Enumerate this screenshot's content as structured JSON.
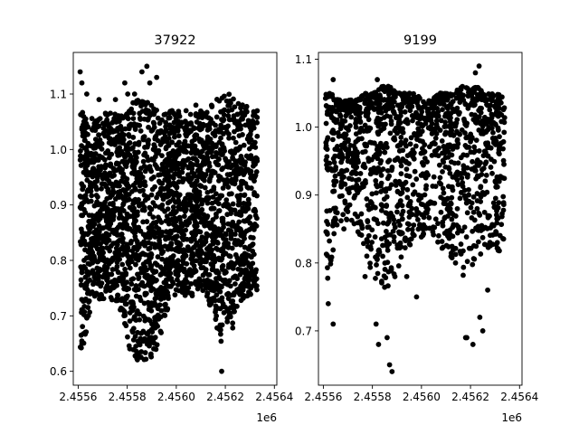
{
  "chart_data": [
    {
      "type": "scatter",
      "title": "37922",
      "xlabel": "",
      "ylabel": "",
      "x_offset_label": "1e6",
      "xlim": [
        2455600.0,
        2456430.0
      ],
      "ylim": [
        0.575,
        1.175
      ],
      "x_ticks": [
        2455620,
        2455820,
        2456020,
        2456220,
        2456420
      ],
      "x_tick_labels": [
        "2.4556",
        "2.4558",
        "2.4560",
        "2.4562",
        "2.4564"
      ],
      "y_ticks": [
        0.6,
        0.7,
        0.8,
        0.9,
        1.0,
        1.1
      ],
      "y_tick_labels": [
        "0.6",
        "0.7",
        "0.8",
        "0.9",
        "1.0",
        "1.1"
      ],
      "grid": false,
      "marker_color": "#000000",
      "series": [
        {
          "band": [
            [
              2455628,
              0.63,
              1.07
            ],
            [
              2455650,
              0.66,
              1.07
            ],
            [
              2455672,
              0.72,
              1.06
            ],
            [
              2455700,
              0.73,
              1.06
            ],
            [
              2455735,
              0.73,
              1.07
            ],
            [
              2455770,
              0.72,
              1.07
            ],
            [
              2455800,
              0.7,
              1.06
            ],
            [
              2455830,
              0.64,
              1.08
            ],
            [
              2455860,
              0.62,
              1.09
            ],
            [
              2455900,
              0.62,
              1.09
            ],
            [
              2455930,
              0.63,
              1.08
            ],
            [
              2455960,
              0.67,
              1.07
            ],
            [
              2455995,
              0.73,
              1.07
            ],
            [
              2456030,
              0.74,
              1.07
            ],
            [
              2456065,
              0.73,
              1.06
            ],
            [
              2456100,
              0.74,
              1.07
            ],
            [
              2456135,
              0.74,
              1.08
            ],
            [
              2456165,
              0.71,
              1.08
            ],
            [
              2456205,
              0.65,
              1.1
            ],
            [
              2456240,
              0.65,
              1.1
            ],
            [
              2456270,
              0.72,
              1.09
            ],
            [
              2456300,
              0.73,
              1.08
            ],
            [
              2456330,
              0.74,
              1.07
            ],
            [
              2456350,
              0.74,
              1.07
            ]
          ],
          "outliers": [
            [
              2455628,
              1.14
            ],
            [
              2455635,
              1.12
            ],
            [
              2455655,
              1.1
            ],
            [
              2455705,
              1.09
            ],
            [
              2455772,
              1.09
            ],
            [
              2455810,
              1.12
            ],
            [
              2455822,
              1.1
            ],
            [
              2455850,
              1.1
            ],
            [
              2455880,
              1.14
            ],
            [
              2455900,
              1.15
            ],
            [
              2455912,
              1.12
            ],
            [
              2455940,
              1.13
            ],
            [
              2456060,
              1.07
            ],
            [
              2456100,
              1.08
            ],
            [
              2456205,
              0.6
            ]
          ]
        }
      ]
    },
    {
      "type": "scatter",
      "title": "9199",
      "xlabel": "",
      "ylabel": "",
      "x_offset_label": "1e6",
      "xlim": [
        2455600.0,
        2456430.0
      ],
      "ylim": [
        0.62,
        1.11
      ],
      "x_ticks": [
        2455620,
        2455820,
        2456020,
        2456220,
        2456420
      ],
      "x_tick_labels": [
        "2.4556",
        "2.4558",
        "2.4560",
        "2.4562",
        "2.4564"
      ],
      "y_ticks": [
        0.7,
        0.8,
        0.9,
        1.0,
        1.1
      ],
      "y_tick_labels": [
        "0.7",
        "0.8",
        "0.9",
        "1.0",
        "1.1"
      ],
      "grid": false,
      "marker_color": "#000000",
      "series": [
        {
          "band": [
            [
              2455628,
              0.76,
              1.05
            ],
            [
              2455650,
              0.78,
              1.05
            ],
            [
              2455680,
              0.84,
              1.04
            ],
            [
              2455720,
              0.85,
              1.04
            ],
            [
              2455760,
              0.84,
              1.04
            ],
            [
              2455790,
              0.81,
              1.05
            ],
            [
              2455825,
              0.78,
              1.05
            ],
            [
              2455860,
              0.76,
              1.06
            ],
            [
              2455890,
              0.76,
              1.06
            ],
            [
              2455920,
              0.78,
              1.05
            ],
            [
              2455950,
              0.82,
              1.05
            ],
            [
              2455990,
              0.83,
              1.05
            ],
            [
              2456030,
              0.84,
              1.04
            ],
            [
              2456060,
              0.83,
              1.04
            ],
            [
              2456095,
              0.82,
              1.05
            ],
            [
              2456125,
              0.81,
              1.05
            ],
            [
              2456150,
              0.79,
              1.05
            ],
            [
              2456185,
              0.78,
              1.06
            ],
            [
              2456215,
              0.79,
              1.06
            ],
            [
              2456245,
              0.8,
              1.06
            ],
            [
              2456275,
              0.82,
              1.05
            ],
            [
              2456305,
              0.81,
              1.05
            ],
            [
              2456335,
              0.81,
              1.05
            ],
            [
              2456360,
              0.82,
              1.04
            ]
          ],
          "outliers": [
            [
              2455640,
              0.74
            ],
            [
              2455660,
              0.71
            ],
            [
              2455790,
              0.78
            ],
            [
              2455835,
              0.71
            ],
            [
              2455845,
              0.68
            ],
            [
              2455880,
              0.69
            ],
            [
              2455890,
              0.65
            ],
            [
              2455900,
              0.64
            ],
            [
              2455960,
              0.78
            ],
            [
              2456000,
              0.75
            ],
            [
              2456200,
              0.69
            ],
            [
              2456205,
              0.69
            ],
            [
              2456230,
              0.68
            ],
            [
              2456258,
              0.72
            ],
            [
              2456270,
              0.7
            ],
            [
              2456290,
              0.76
            ],
            [
              2456255,
              1.09
            ],
            [
              2456240,
              1.08
            ],
            [
              2455660,
              1.07
            ],
            [
              2455840,
              1.07
            ]
          ]
        }
      ]
    }
  ]
}
